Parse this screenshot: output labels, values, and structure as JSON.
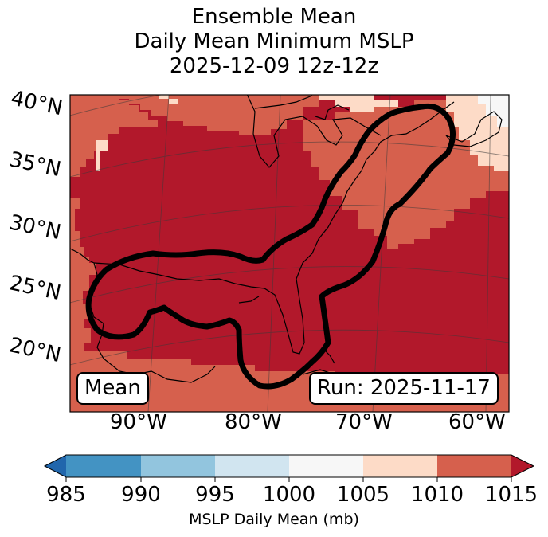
{
  "title": {
    "line1": "Ensemble Mean",
    "line2": "Daily Mean Minimum MSLP",
    "line3": "2025-12-09 12z-12z"
  },
  "map": {
    "lat_labels": [
      "40°N",
      "35°N",
      "30°N",
      "25°N",
      "20°N"
    ],
    "lon_labels": [
      "90°W",
      "80°W",
      "70°W",
      "60°W"
    ],
    "mean_label": "Mean",
    "run_label": "Run: 2025-11-17"
  },
  "colorbar": {
    "ticks": [
      "985",
      "990",
      "995",
      "1000",
      "1005",
      "1010",
      "1015"
    ],
    "title": "MSLP Daily Mean (mb)",
    "colors": {
      "under": "#2166ac",
      "b985_990": "#4393c3",
      "b990_995": "#92c5de",
      "b995_1000": "#d1e5f0",
      "b1000_1005": "#f7f7f7",
      "b1005_1010": "#fddbc7",
      "b1010_1015": "#d6604d",
      "over": "#b2182b"
    }
  }
}
